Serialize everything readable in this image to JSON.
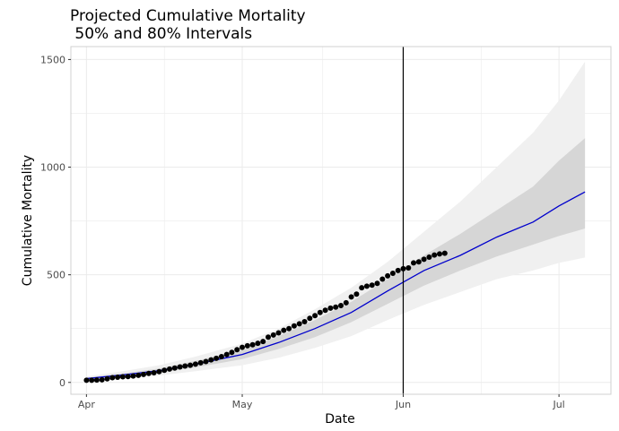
{
  "chart_data": {
    "type": "line",
    "title_lines": [
      "Projected Cumulative Mortality",
      " 50% and 80% Intervals"
    ],
    "xlabel": "Date",
    "ylabel": "Cumulative Mortality",
    "x_range": [
      "2020-03-29",
      "2020-07-11"
    ],
    "ylim": [
      -55,
      1560
    ],
    "x_ticks": [
      {
        "date": "2020-04-01",
        "label": "Apr"
      },
      {
        "date": "2020-05-01",
        "label": "May"
      },
      {
        "date": "2020-06-01",
        "label": "Jun"
      },
      {
        "date": "2020-07-01",
        "label": "Jul"
      }
    ],
    "y_ticks": [
      0,
      500,
      1000,
      1500
    ],
    "y_minor_ticks": [
      250,
      750,
      1250
    ],
    "grid": true,
    "vline": {
      "date": "2020-06-01",
      "color": "#000000"
    },
    "colors": {
      "median": "#0000cc",
      "band80": "#f0f0f0",
      "band50": "#d6d6d6",
      "observed": "#000000",
      "grid": "#ebebeb",
      "panel_border": "#d0d0d0"
    },
    "series": [
      {
        "role": "median",
        "points": [
          [
            "2020-04-01",
            18
          ],
          [
            "2020-04-08",
            35
          ],
          [
            "2020-04-15",
            55
          ],
          [
            "2020-04-22",
            85
          ],
          [
            "2020-05-01",
            130
          ],
          [
            "2020-05-08",
            185
          ],
          [
            "2020-05-15",
            250
          ],
          [
            "2020-05-22",
            325
          ],
          [
            "2020-05-29",
            425
          ],
          [
            "2020-06-05",
            520
          ],
          [
            "2020-06-12",
            590
          ],
          [
            "2020-06-19",
            675
          ],
          [
            "2020-06-26",
            745
          ],
          [
            "2020-07-01",
            820
          ],
          [
            "2020-07-06",
            885
          ]
        ]
      },
      {
        "role": "band50",
        "upper": [
          [
            "2020-04-01",
            22
          ],
          [
            "2020-04-08",
            42
          ],
          [
            "2020-04-15",
            65
          ],
          [
            "2020-04-22",
            100
          ],
          [
            "2020-05-01",
            150
          ],
          [
            "2020-05-08",
            215
          ],
          [
            "2020-05-15",
            290
          ],
          [
            "2020-05-22",
            375
          ],
          [
            "2020-05-29",
            480
          ],
          [
            "2020-06-05",
            590
          ],
          [
            "2020-06-12",
            690
          ],
          [
            "2020-06-19",
            800
          ],
          [
            "2020-06-26",
            910
          ],
          [
            "2020-07-01",
            1030
          ],
          [
            "2020-07-06",
            1135
          ]
        ],
        "lower": [
          [
            "2020-04-01",
            15
          ],
          [
            "2020-04-08",
            28
          ],
          [
            "2020-04-15",
            45
          ],
          [
            "2020-04-22",
            70
          ],
          [
            "2020-05-01",
            108
          ],
          [
            "2020-05-08",
            155
          ],
          [
            "2020-05-15",
            210
          ],
          [
            "2020-05-22",
            280
          ],
          [
            "2020-05-29",
            365
          ],
          [
            "2020-06-05",
            450
          ],
          [
            "2020-06-12",
            520
          ],
          [
            "2020-06-19",
            585
          ],
          [
            "2020-06-26",
            640
          ],
          [
            "2020-07-01",
            680
          ],
          [
            "2020-07-06",
            715
          ]
        ]
      },
      {
        "role": "band80",
        "upper": [
          [
            "2020-04-01",
            28
          ],
          [
            "2020-04-08",
            52
          ],
          [
            "2020-04-15",
            80
          ],
          [
            "2020-04-22",
            120
          ],
          [
            "2020-05-01",
            180
          ],
          [
            "2020-05-08",
            250
          ],
          [
            "2020-05-15",
            340
          ],
          [
            "2020-05-22",
            440
          ],
          [
            "2020-05-29",
            560
          ],
          [
            "2020-06-05",
            700
          ],
          [
            "2020-06-12",
            840
          ],
          [
            "2020-06-19",
            1000
          ],
          [
            "2020-06-26",
            1160
          ],
          [
            "2020-07-01",
            1310
          ],
          [
            "2020-07-06",
            1490
          ]
        ],
        "lower": [
          [
            "2020-04-01",
            10
          ],
          [
            "2020-04-08",
            20
          ],
          [
            "2020-04-15",
            32
          ],
          [
            "2020-04-22",
            52
          ],
          [
            "2020-05-01",
            80
          ],
          [
            "2020-05-08",
            115
          ],
          [
            "2020-05-15",
            160
          ],
          [
            "2020-05-22",
            215
          ],
          [
            "2020-05-29",
            290
          ],
          [
            "2020-06-05",
            360
          ],
          [
            "2020-06-12",
            420
          ],
          [
            "2020-06-19",
            480
          ],
          [
            "2020-06-26",
            520
          ],
          [
            "2020-07-01",
            555
          ],
          [
            "2020-07-06",
            580
          ]
        ]
      },
      {
        "role": "observed",
        "points": [
          [
            "2020-04-01",
            10
          ],
          [
            "2020-04-02",
            10
          ],
          [
            "2020-04-03",
            11
          ],
          [
            "2020-04-04",
            12
          ],
          [
            "2020-04-05",
            17
          ],
          [
            "2020-04-06",
            22
          ],
          [
            "2020-04-07",
            24
          ],
          [
            "2020-04-08",
            26
          ],
          [
            "2020-04-09",
            27
          ],
          [
            "2020-04-10",
            30
          ],
          [
            "2020-04-11",
            33
          ],
          [
            "2020-04-12",
            37
          ],
          [
            "2020-04-13",
            42
          ],
          [
            "2020-04-14",
            45
          ],
          [
            "2020-04-15",
            50
          ],
          [
            "2020-04-16",
            56
          ],
          [
            "2020-04-17",
            62
          ],
          [
            "2020-04-18",
            67
          ],
          [
            "2020-04-19",
            72
          ],
          [
            "2020-04-20",
            76
          ],
          [
            "2020-04-21",
            80
          ],
          [
            "2020-04-22",
            85
          ],
          [
            "2020-04-23",
            91
          ],
          [
            "2020-04-24",
            97
          ],
          [
            "2020-04-25",
            105
          ],
          [
            "2020-04-26",
            112
          ],
          [
            "2020-04-27",
            120
          ],
          [
            "2020-04-28",
            130
          ],
          [
            "2020-04-29",
            140
          ],
          [
            "2020-04-30",
            152
          ],
          [
            "2020-05-01",
            163
          ],
          [
            "2020-05-02",
            170
          ],
          [
            "2020-05-03",
            175
          ],
          [
            "2020-05-04",
            182
          ],
          [
            "2020-05-05",
            190
          ],
          [
            "2020-05-06",
            210
          ],
          [
            "2020-05-07",
            220
          ],
          [
            "2020-05-08",
            230
          ],
          [
            "2020-05-09",
            242
          ],
          [
            "2020-05-10",
            250
          ],
          [
            "2020-05-11",
            262
          ],
          [
            "2020-05-12",
            272
          ],
          [
            "2020-05-13",
            282
          ],
          [
            "2020-05-14",
            298
          ],
          [
            "2020-05-15",
            310
          ],
          [
            "2020-05-16",
            325
          ],
          [
            "2020-05-17",
            335
          ],
          [
            "2020-05-18",
            345
          ],
          [
            "2020-05-19",
            350
          ],
          [
            "2020-05-20",
            357
          ],
          [
            "2020-05-21",
            370
          ],
          [
            "2020-05-22",
            397
          ],
          [
            "2020-05-23",
            410
          ],
          [
            "2020-05-24",
            440
          ],
          [
            "2020-05-25",
            447
          ],
          [
            "2020-05-26",
            452
          ],
          [
            "2020-05-27",
            460
          ],
          [
            "2020-05-28",
            480
          ],
          [
            "2020-05-29",
            495
          ],
          [
            "2020-05-30",
            507
          ],
          [
            "2020-05-31",
            520
          ],
          [
            "2020-06-01",
            528
          ],
          [
            "2020-06-02",
            532
          ],
          [
            "2020-06-03",
            555
          ],
          [
            "2020-06-04",
            560
          ],
          [
            "2020-06-05",
            572
          ],
          [
            "2020-06-06",
            582
          ],
          [
            "2020-06-07",
            592
          ],
          [
            "2020-06-08",
            597
          ],
          [
            "2020-06-09",
            600
          ]
        ]
      }
    ]
  }
}
